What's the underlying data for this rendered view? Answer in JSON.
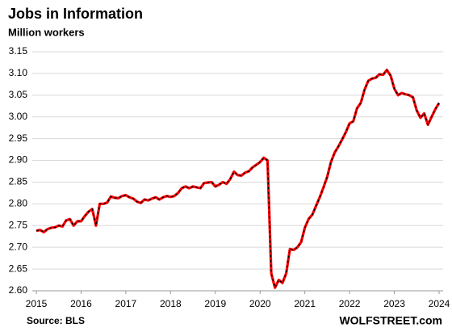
{
  "chart_data": {
    "type": "line",
    "title": "Jobs in Information",
    "subtitle": "Million workers",
    "source": "Source: BLS",
    "credit": "WOLFSTREET.com",
    "x": [
      2015,
      2015.083,
      2015.167,
      2015.25,
      2015.333,
      2015.417,
      2015.5,
      2015.583,
      2015.667,
      2015.75,
      2015.833,
      2015.917,
      2016,
      2016.083,
      2016.167,
      2016.25,
      2016.333,
      2016.417,
      2016.5,
      2016.583,
      2016.667,
      2016.75,
      2016.833,
      2016.917,
      2017,
      2017.083,
      2017.167,
      2017.25,
      2017.333,
      2017.417,
      2017.5,
      2017.583,
      2017.667,
      2017.75,
      2017.833,
      2017.917,
      2018,
      2018.083,
      2018.167,
      2018.25,
      2018.333,
      2018.417,
      2018.5,
      2018.583,
      2018.667,
      2018.75,
      2018.833,
      2018.917,
      2019,
      2019.083,
      2019.167,
      2019.25,
      2019.333,
      2019.417,
      2019.5,
      2019.583,
      2019.667,
      2019.75,
      2019.833,
      2019.917,
      2020,
      2020.083,
      2020.167,
      2020.25,
      2020.333,
      2020.417,
      2020.5,
      2020.583,
      2020.667,
      2020.75,
      2020.833,
      2020.917,
      2021,
      2021.083,
      2021.167,
      2021.25,
      2021.333,
      2021.417,
      2021.5,
      2021.583,
      2021.667,
      2021.75,
      2021.833,
      2021.917,
      2022,
      2022.083,
      2022.167,
      2022.25,
      2022.333,
      2022.417,
      2022.5,
      2022.583,
      2022.667,
      2022.75,
      2022.833,
      2022.917,
      2023,
      2023.083,
      2023.167,
      2023.25,
      2023.333,
      2023.417,
      2023.5,
      2023.583,
      2023.667,
      2023.75,
      2023.833,
      2023.917,
      2024
    ],
    "series": [
      {
        "name": "Jobs in Information",
        "color": "#ff0000",
        "dash_color": "#000000",
        "values": [
          2.738,
          2.74,
          2.735,
          2.742,
          2.745,
          2.746,
          2.75,
          2.748,
          2.762,
          2.765,
          2.75,
          2.76,
          2.76,
          2.772,
          2.782,
          2.788,
          2.75,
          2.8,
          2.8,
          2.803,
          2.817,
          2.814,
          2.813,
          2.818,
          2.82,
          2.815,
          2.812,
          2.805,
          2.802,
          2.81,
          2.808,
          2.812,
          2.815,
          2.81,
          2.815,
          2.818,
          2.816,
          2.818,
          2.825,
          2.836,
          2.84,
          2.836,
          2.84,
          2.838,
          2.836,
          2.848,
          2.849,
          2.85,
          2.84,
          2.844,
          2.85,
          2.846,
          2.857,
          2.874,
          2.866,
          2.865,
          2.872,
          2.875,
          2.884,
          2.89,
          2.896,
          2.906,
          2.9,
          2.64,
          2.607,
          2.625,
          2.618,
          2.64,
          2.696,
          2.694,
          2.7,
          2.712,
          2.745,
          2.765,
          2.775,
          2.795,
          2.815,
          2.838,
          2.862,
          2.896,
          2.918,
          2.932,
          2.948,
          2.965,
          2.985,
          2.99,
          3.02,
          3.032,
          3.062,
          3.083,
          3.088,
          3.09,
          3.098,
          3.097,
          3.108,
          3.095,
          3.065,
          3.05,
          3.055,
          3.052,
          3.05,
          3.045,
          3.015,
          2.998,
          3.008,
          2.982,
          3.0,
          3.018,
          3.032
        ]
      }
    ],
    "xlim": [
      2015,
      2024
    ],
    "xticks": [
      2015,
      2016,
      2017,
      2018,
      2019,
      2020,
      2021,
      2022,
      2023,
      2024
    ],
    "ylim": [
      2.6,
      3.15
    ],
    "yticks": [
      {
        "value": 2.6,
        "label": "2.60"
      },
      2.65,
      {
        "value": 2.7,
        "label": "2.70"
      },
      2.75,
      {
        "value": 2.8,
        "label": "2.80"
      },
      2.85,
      {
        "value": 2.9,
        "label": "2.90"
      },
      2.95,
      {
        "value": 3.0,
        "label": "3.00"
      },
      3.05,
      {
        "value": 3.1,
        "label": "3.10"
      },
      3.15
    ],
    "grid": true
  }
}
